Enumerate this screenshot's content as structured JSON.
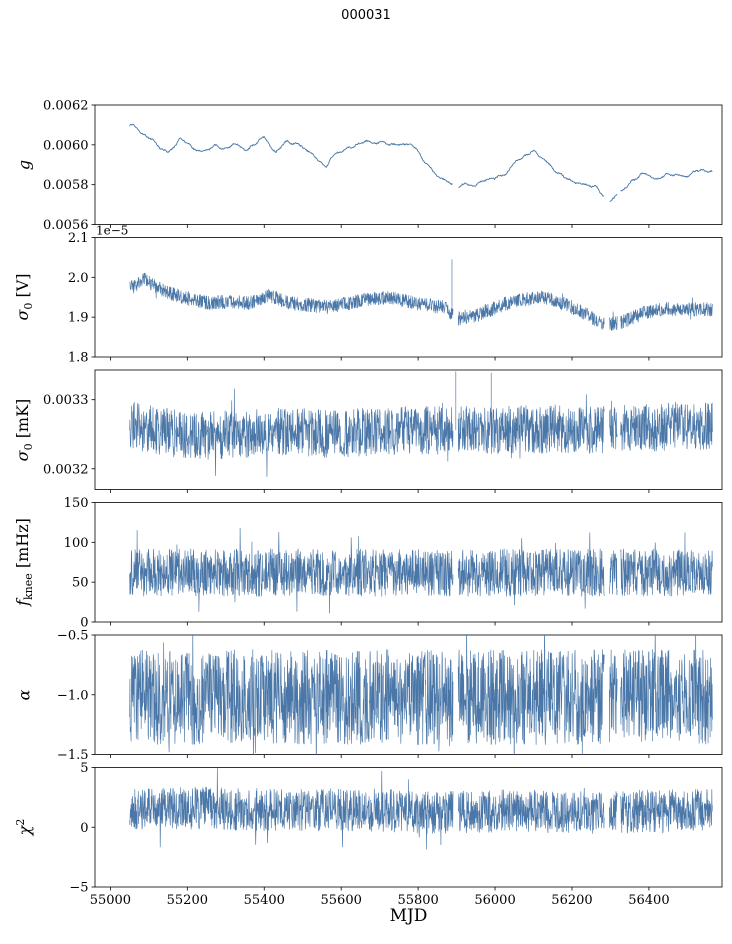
{
  "chart_data": {
    "type": "line",
    "title": "000031",
    "xlabel": "MJD",
    "line_color": "#4a77a8",
    "xlim": [
      54960,
      56590
    ],
    "xticks": [
      55000,
      55200,
      55400,
      55600,
      55800,
      56000,
      56200,
      56400
    ],
    "xtick_labels": [
      "55000",
      "55200",
      "55400",
      "55600",
      "55800",
      "56000",
      "56200",
      "56400"
    ],
    "x_data_range": [
      55050,
      56565
    ],
    "gaps": [
      [
        55891,
        55904
      ],
      [
        56284,
        56297
      ],
      [
        56318,
        56326
      ]
    ],
    "panels": [
      {
        "name": "g",
        "ylabel": {
          "base": "g",
          "sub": "",
          "sup": "",
          "unit": ""
        },
        "ylim": [
          0.0056,
          0.0062
        ],
        "ytick_vals": [
          0.0056,
          0.0058,
          0.006,
          0.0062
        ],
        "ytick_labels": [
          "0.0056",
          "0.0058",
          "0.0060",
          "0.0062"
        ],
        "offset_label": "",
        "style": "smooth",
        "noise": 2e-05,
        "jitter": 4e-06,
        "trend": {
          "x": [
            55060,
            55090,
            55120,
            55150,
            55180,
            55210,
            55240,
            55270,
            55300,
            55330,
            55360,
            55400,
            55430,
            55460,
            55490,
            55520,
            55560,
            55590,
            55620,
            55660,
            55700,
            55740,
            55780,
            55820,
            55850,
            55900,
            55950,
            56000,
            56050,
            56100,
            56140,
            56180,
            56220,
            56260,
            56300,
            56340,
            56380,
            56420,
            56460,
            56500
          ],
          "y": [
            0.00609,
            0.00605,
            0.00601,
            0.00597,
            0.00601,
            0.00599,
            0.00597,
            0.006,
            0.00598,
            0.006,
            0.00597,
            0.00604,
            0.00598,
            0.00601,
            0.00599,
            0.00596,
            0.0059,
            0.00596,
            0.00599,
            0.006,
            0.00602,
            0.00601,
            0.00599,
            0.00592,
            0.00584,
            0.0058,
            0.00579,
            0.00584,
            0.0059,
            0.00597,
            0.0059,
            0.00584,
            0.00581,
            0.00577,
            0.00573,
            0.00579,
            0.00585,
            0.00583,
            0.00585,
            0.00586
          ]
        },
        "spikes": []
      },
      {
        "name": "sigma0-V",
        "ylabel": {
          "base": "σ",
          "sub": "0",
          "sup": "",
          "unit": " [V]"
        },
        "ylim": [
          1.8,
          2.1
        ],
        "ytick_vals": [
          1.8,
          1.9,
          2.0,
          2.1
        ],
        "ytick_labels": [
          "1.8",
          "1.9",
          "2.0",
          "2.1"
        ],
        "offset_label": "1e−5",
        "value_scale_note": "values in units of 1e-5 V",
        "style": "dense",
        "noise": 0.018,
        "trend": {
          "x": [
            55060,
            55090,
            55130,
            55170,
            55210,
            55260,
            55310,
            55360,
            55410,
            55440,
            55470,
            55520,
            55570,
            55620,
            55670,
            55720,
            55770,
            55820,
            55870,
            55900,
            55940,
            55980,
            56030,
            56080,
            56120,
            56160,
            56200,
            56240,
            56280,
            56320,
            56360,
            56400,
            56450,
            56500
          ],
          "y": [
            1.975,
            1.995,
            1.97,
            1.955,
            1.945,
            1.935,
            1.94,
            1.935,
            1.955,
            1.945,
            1.935,
            1.93,
            1.925,
            1.935,
            1.945,
            1.95,
            1.94,
            1.93,
            1.925,
            1.895,
            1.9,
            1.915,
            1.935,
            1.945,
            1.95,
            1.94,
            1.925,
            1.905,
            1.88,
            1.885,
            1.9,
            1.915,
            1.92,
            1.92
          ]
        },
        "spikes": [
          {
            "x": 55888,
            "y": 2.045
          }
        ]
      },
      {
        "name": "sigma0-mK",
        "ylabel": {
          "base": "σ",
          "sub": "0",
          "sup": "",
          "unit": " [mK]"
        },
        "ylim": [
          0.00317,
          0.003343
        ],
        "ytick_vals": [
          0.0032,
          0.0033
        ],
        "ytick_labels": [
          "0.0032",
          "0.0033"
        ],
        "offset_label": "",
        "style": "dense",
        "noise": 3.5e-05,
        "trend": {
          "x": [
            55060,
            55160,
            55260,
            55360,
            55460,
            55560,
            55660,
            55760,
            55860,
            55960,
            56060,
            56160,
            56260,
            56360,
            56460,
            56510
          ],
          "y": [
            0.003262,
            0.003252,
            0.003248,
            0.003251,
            0.003255,
            0.00325,
            0.003253,
            0.003255,
            0.003256,
            0.003256,
            0.003257,
            0.003257,
            0.003256,
            0.003258,
            0.003262,
            0.003262
          ]
        },
        "spikes": [
          {
            "x": 55898,
            "y": 0.003341
          },
          {
            "x": 55990,
            "y": 0.003339
          }
        ]
      },
      {
        "name": "fknee",
        "ylabel": {
          "base": "f",
          "sub": "knee",
          "sup": "",
          "unit": " [mHz]"
        },
        "ylim": [
          0,
          150
        ],
        "ytick_vals": [
          0,
          50,
          100,
          150
        ],
        "ytick_labels": [
          "0",
          "50",
          "100",
          "150"
        ],
        "offset_label": "",
        "style": "dense",
        "noise": 30,
        "trend": {
          "x": [
            55060,
            56510
          ],
          "y": [
            62,
            62
          ]
        },
        "spikes": []
      },
      {
        "name": "alpha",
        "ylabel": {
          "base": "α",
          "sub": "",
          "sup": "",
          "unit": ""
        },
        "ylim": [
          -1.5,
          -0.5
        ],
        "ytick_vals": [
          -1.5,
          -1.0,
          -0.5
        ],
        "ytick_labels": [
          "−1.5",
          "−1.0",
          "−0.5"
        ],
        "offset_label": "",
        "style": "dense",
        "noise": 0.4,
        "trend": {
          "x": [
            55060,
            56510
          ],
          "y": [
            -1.02,
            -1.02
          ]
        },
        "spikes": []
      },
      {
        "name": "chi2",
        "ylabel": {
          "base": "χ",
          "sub": "",
          "sup": "2",
          "unit": ""
        },
        "ylim": [
          -5,
          5
        ],
        "ytick_vals": [
          -5,
          0,
          5
        ],
        "ytick_labels": [
          "−5",
          "0",
          "5"
        ],
        "offset_label": "",
        "style": "dense",
        "noise": 1.8,
        "trend": {
          "x": [
            55060,
            55250,
            55450,
            55650,
            55850,
            56050,
            56250,
            56450,
            56510
          ],
          "y": [
            1.5,
            1.6,
            1.4,
            1.5,
            1.2,
            1.4,
            1.2,
            1.4,
            1.4
          ]
        },
        "spikes": []
      }
    ]
  }
}
